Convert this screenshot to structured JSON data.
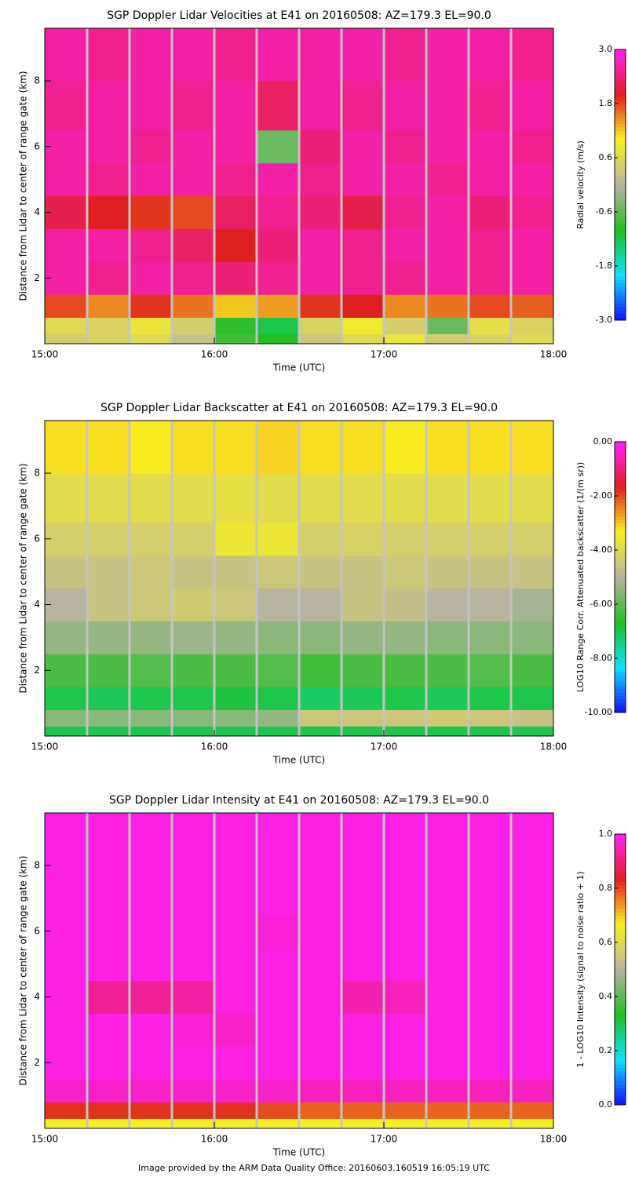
{
  "footer": "Image provided by the ARM Data Quality Office: 20160603.160519 16:05:19 UTC",
  "chart_data": [
    {
      "type": "heatmap",
      "title": "SGP Doppler Lidar Velocities at E41 on 20160508: AZ=179.3 EL=90.0",
      "xlabel": "Time (UTC)",
      "ylabel": "Distance from Lidar to center of range gate (km)",
      "colorbar_label": "Radial velocity (m/s)",
      "xlim": [
        15,
        18
      ],
      "xticks": [
        {
          "value": 15,
          "label": "15:00"
        },
        {
          "value": 16,
          "label": "16:00"
        },
        {
          "value": 17,
          "label": "17:00"
        },
        {
          "value": 18,
          "label": "18:00"
        }
      ],
      "ylim": [
        0,
        9.6
      ],
      "yticks": [
        2,
        4,
        6,
        8
      ],
      "clim": [
        -3,
        3
      ],
      "cticks": [
        {
          "value": 3,
          "label": "3.0"
        },
        {
          "value": 1.8,
          "label": "1.8"
        },
        {
          "value": 0.6,
          "label": "0.6"
        },
        {
          "value": -0.6,
          "label": "-0.6"
        },
        {
          "value": -1.8,
          "label": "-1.8"
        },
        {
          "value": -3,
          "label": "-3.0"
        }
      ],
      "colormap": [
        "#1010ff",
        "#10e0ff",
        "#20c020",
        "#b8b4a0",
        "#f8f020",
        "#e02020",
        "#ff20ff"
      ],
      "xbins": [
        15,
        15.25,
        15.5,
        15.75,
        16,
        16.25,
        16.5,
        16.75,
        17,
        17.25,
        17.5,
        17.75,
        18
      ],
      "ybins": [
        0,
        0.3,
        0.8,
        1.5,
        2.5,
        3.5,
        4.5,
        5.5,
        6.5,
        8,
        9.6
      ],
      "z": [
        [
          0.4,
          0.5,
          0.6,
          0.2,
          -0.8,
          -1.0,
          0.3,
          0.6,
          0.8,
          0.4,
          0.5,
          0.6
        ],
        [
          0.6,
          0.5,
          0.8,
          0.4,
          -0.9,
          -1.2,
          0.5,
          0.9,
          0.4,
          -0.5,
          0.7,
          0.5
        ],
        [
          1.8,
          1.5,
          1.9,
          1.6,
          1.2,
          1.4,
          1.9,
          2.0,
          1.5,
          1.6,
          1.8,
          1.7
        ],
        [
          2.6,
          2.5,
          2.6,
          2.5,
          2.4,
          2.5,
          2.6,
          2.5,
          2.5,
          2.6,
          2.5,
          2.6
        ],
        [
          2.6,
          2.6,
          2.5,
          2.3,
          2.0,
          2.4,
          2.6,
          2.5,
          2.6,
          2.6,
          2.5,
          2.6
        ],
        [
          2.2,
          2.0,
          1.9,
          1.8,
          2.3,
          2.5,
          2.4,
          2.2,
          2.5,
          2.6,
          2.4,
          2.5
        ],
        [
          2.6,
          2.5,
          2.6,
          2.6,
          2.5,
          2.6,
          2.5,
          2.6,
          2.6,
          2.5,
          2.6,
          2.6
        ],
        [
          2.6,
          2.6,
          2.5,
          2.6,
          2.6,
          -0.5,
          2.4,
          2.6,
          2.5,
          2.6,
          2.6,
          2.5
        ],
        [
          2.5,
          2.6,
          2.6,
          2.5,
          2.6,
          2.3,
          2.6,
          2.5,
          2.6,
          2.6,
          2.5,
          2.6
        ],
        [
          2.6,
          2.5,
          2.6,
          2.6,
          2.5,
          2.6,
          2.6,
          2.6,
          2.5,
          2.6,
          2.6,
          2.5
        ]
      ]
    },
    {
      "type": "heatmap",
      "title": "SGP Doppler Lidar Backscatter at E41 on 20160508: AZ=179.3 EL=90.0",
      "xlabel": "Time (UTC)",
      "ylabel": "Distance from Lidar to center of range gate (km)",
      "colorbar_label": "LOG10 Range Corr. Attenuated backscatter (1/(m sr))",
      "xlim": [
        15,
        18
      ],
      "xticks": [
        {
          "value": 15,
          "label": "15:00"
        },
        {
          "value": 16,
          "label": "16:00"
        },
        {
          "value": 17,
          "label": "17:00"
        },
        {
          "value": 18,
          "label": "18:00"
        }
      ],
      "ylim": [
        0,
        9.6
      ],
      "yticks": [
        2,
        4,
        6,
        8
      ],
      "clim": [
        -10,
        0
      ],
      "cticks": [
        {
          "value": 0,
          "label": "0.00"
        },
        {
          "value": -2,
          "label": "-2.00"
        },
        {
          "value": -4,
          "label": "-4.00"
        },
        {
          "value": -6,
          "label": "-6.00"
        },
        {
          "value": -8,
          "label": "-8.00"
        },
        {
          "value": -10,
          "label": "-10.00"
        }
      ],
      "colormap": [
        "#1010ff",
        "#10e0ff",
        "#20c020",
        "#b8b4a0",
        "#f8f020",
        "#e02020",
        "#ff20ff"
      ],
      "xbins": [
        15,
        15.25,
        15.5,
        15.75,
        16,
        16.25,
        16.5,
        16.75,
        17,
        17.25,
        17.5,
        17.75,
        18
      ],
      "ybins": [
        0,
        0.3,
        0.8,
        1.5,
        2.5,
        3.5,
        4.5,
        5.5,
        6.5,
        8,
        9.6
      ],
      "z": [
        [
          -7.0,
          -7.0,
          -7.0,
          -7.0,
          -7.0,
          -7.0,
          -7.0,
          -7.0,
          -7.0,
          -7.0,
          -7.0,
          -7.0
        ],
        [
          -5.5,
          -5.5,
          -5.5,
          -5.5,
          -5.5,
          -5.4,
          -4.5,
          -4.5,
          -4.5,
          -4.4,
          -4.5,
          -4.6
        ],
        [
          -7.0,
          -7.1,
          -7.0,
          -7.0,
          -6.9,
          -7.0,
          -7.2,
          -7.1,
          -7.0,
          -7.1,
          -7.0,
          -7.0
        ],
        [
          -6.2,
          -6.2,
          -6.1,
          -6.2,
          -6.2,
          -6.1,
          -6.3,
          -6.2,
          -6.2,
          -6.2,
          -6.1,
          -6.2
        ],
        [
          -5.4,
          -5.4,
          -5.4,
          -5.3,
          -5.4,
          -5.5,
          -5.5,
          -5.4,
          -5.4,
          -5.5,
          -5.5,
          -5.5
        ],
        [
          -5.0,
          -4.6,
          -4.5,
          -4.4,
          -4.5,
          -5.0,
          -5.0,
          -4.6,
          -4.7,
          -5.0,
          -5.0,
          -5.2
        ],
        [
          -4.6,
          -4.6,
          -4.5,
          -4.6,
          -4.6,
          -4.5,
          -4.6,
          -4.6,
          -4.5,
          -4.6,
          -4.6,
          -4.6
        ],
        [
          -4.3,
          -4.3,
          -4.3,
          -4.3,
          -3.6,
          -3.6,
          -4.3,
          -4.2,
          -4.3,
          -4.3,
          -4.3,
          -4.3
        ],
        [
          -3.9,
          -3.9,
          -3.9,
          -3.9,
          -3.8,
          -3.9,
          -3.9,
          -3.9,
          -3.9,
          -3.9,
          -3.9,
          -3.9
        ],
        [
          -3.2,
          -3.2,
          -3.3,
          -3.2,
          -3.2,
          -3.1,
          -3.2,
          -3.2,
          -3.3,
          -3.2,
          -3.2,
          -3.2
        ]
      ]
    },
    {
      "type": "heatmap",
      "title": "SGP Doppler Lidar Intensity at E41 on 20160508: AZ=179.3 EL=90.0",
      "xlabel": "Time (UTC)",
      "ylabel": "Distance from Lidar to center of range gate (km)",
      "colorbar_label": "1 - LOG10 Intensity (signal to noise ratio + 1)",
      "xlim": [
        15,
        18
      ],
      "xticks": [
        {
          "value": 15,
          "label": "15:00"
        },
        {
          "value": 16,
          "label": "16:00"
        },
        {
          "value": 17,
          "label": "17:00"
        },
        {
          "value": 18,
          "label": "18:00"
        }
      ],
      "ylim": [
        0,
        9.6
      ],
      "yticks": [
        2,
        4,
        6,
        8
      ],
      "clim": [
        0,
        1
      ],
      "cticks": [
        {
          "value": 1,
          "label": "1.0"
        },
        {
          "value": 0.8,
          "label": "0.8"
        },
        {
          "value": 0.6,
          "label": "0.6"
        },
        {
          "value": 0.4,
          "label": "0.4"
        },
        {
          "value": 0.2,
          "label": "0.2"
        },
        {
          "value": 0,
          "label": "0.0"
        }
      ],
      "colormap": [
        "#1010ff",
        "#10e0ff",
        "#20c020",
        "#b8b4a0",
        "#f8f020",
        "#e02020",
        "#ff20ff"
      ],
      "xbins": [
        15,
        15.25,
        15.5,
        15.75,
        16,
        16.25,
        16.5,
        16.75,
        17,
        17.25,
        17.5,
        17.75,
        18
      ],
      "ybins": [
        0,
        0.3,
        0.8,
        1.5,
        2.5,
        3.5,
        4.5,
        5.5,
        6.5,
        8,
        9.6
      ],
      "z": [
        [
          0.66,
          0.66,
          0.66,
          0.66,
          0.66,
          0.66,
          0.66,
          0.66,
          0.66,
          0.66,
          0.66,
          0.66
        ],
        [
          0.82,
          0.82,
          0.82,
          0.82,
          0.82,
          0.8,
          0.78,
          0.78,
          0.78,
          0.78,
          0.78,
          0.78
        ],
        [
          0.96,
          0.96,
          0.96,
          0.96,
          0.96,
          0.96,
          0.95,
          0.95,
          0.95,
          0.95,
          0.95,
          0.95
        ],
        [
          0.98,
          0.98,
          0.98,
          0.98,
          0.98,
          0.98,
          0.98,
          0.98,
          0.98,
          0.98,
          0.98,
          0.98
        ],
        [
          0.98,
          0.98,
          0.98,
          0.97,
          0.96,
          0.98,
          0.98,
          0.98,
          0.98,
          0.98,
          0.98,
          0.98
        ],
        [
          0.98,
          0.92,
          0.92,
          0.93,
          0.98,
          0.98,
          0.98,
          0.94,
          0.95,
          0.98,
          0.98,
          0.98
        ],
        [
          0.98,
          0.98,
          0.98,
          0.98,
          0.98,
          0.98,
          0.98,
          0.98,
          0.98,
          0.98,
          0.98,
          0.98
        ],
        [
          0.98,
          0.98,
          0.98,
          0.98,
          0.98,
          0.97,
          0.98,
          0.98,
          0.98,
          0.98,
          0.98,
          0.98
        ],
        [
          0.98,
          0.98,
          0.98,
          0.98,
          0.98,
          0.98,
          0.98,
          0.98,
          0.98,
          0.98,
          0.98,
          0.98
        ],
        [
          0.98,
          0.98,
          0.98,
          0.98,
          0.98,
          0.98,
          0.98,
          0.98,
          0.98,
          0.98,
          0.98,
          0.98
        ]
      ]
    }
  ]
}
